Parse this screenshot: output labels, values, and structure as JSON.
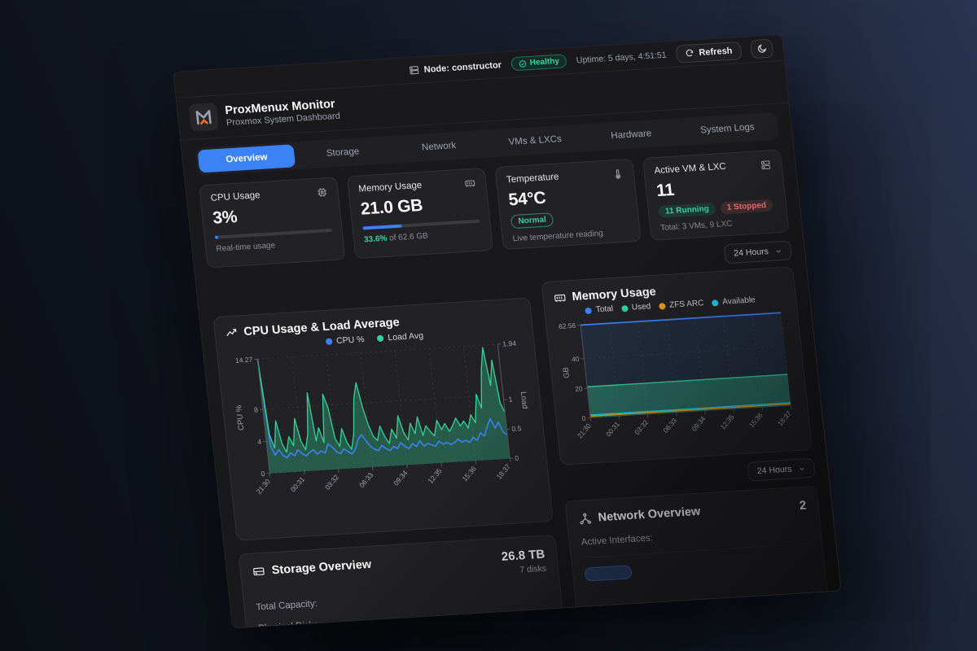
{
  "colors": {
    "accent_blue": "#3b82f6",
    "green": "#34d399",
    "red": "#f87171",
    "orange": "#f59e0b",
    "cyan": "#22d3ee",
    "dashboard_bg": "#19191c",
    "card_bg": "#222226"
  },
  "topbar": {
    "node_label": "Node: constructor",
    "health_label": "Healthy",
    "uptime": "Uptime: 5 days, 4:51:51",
    "refresh_label": "Refresh"
  },
  "header": {
    "title": "ProxMenux Monitor",
    "subtitle": "Proxmox System Dashboard"
  },
  "tabs": [
    {
      "label": "Overview",
      "active": true
    },
    {
      "label": "Storage",
      "active": false
    },
    {
      "label": "Network",
      "active": false
    },
    {
      "label": "VMs & LXCs",
      "active": false
    },
    {
      "label": "Hardware",
      "active": false
    },
    {
      "label": "System Logs",
      "active": false
    }
  ],
  "stats": {
    "cpu": {
      "title": "CPU Usage",
      "value": "3%",
      "percent": 3,
      "caption": "Real-time usage"
    },
    "memory": {
      "title": "Memory Usage",
      "value": "21.0 GB",
      "percent": 33.6,
      "caption_highlight": "33.6%",
      "caption_rest": " of 62.6 GB"
    },
    "temperature": {
      "title": "Temperature",
      "value": "54°C",
      "badge": "Normal",
      "caption": "Live temperature reading"
    },
    "vms": {
      "title": "Active VM & LXC",
      "value": "11",
      "running": "11 Running",
      "stopped": "1 Stopped",
      "caption": "Total: 3 VMs, 9 LXC"
    }
  },
  "range_selector": {
    "label": "24 Hours"
  },
  "range_selector2": {
    "label": "24 Hours"
  },
  "storage": {
    "title": "Storage Overview",
    "rows": [
      {
        "label": "Total Capacity:",
        "value": "26.8 TB"
      },
      {
        "label": "Physical Disks:",
        "value": "7 disks"
      }
    ]
  },
  "network": {
    "title": "Network Overview",
    "row_label": "Active Interfaces:",
    "count": "2"
  },
  "chart_data": [
    {
      "type": "line",
      "title": "CPU Usage & Load Average",
      "legend": [
        "CPU %",
        "Load Avg"
      ],
      "x_labels": [
        "21:30",
        "00:31",
        "03:32",
        "06:33",
        "09:34",
        "12:35",
        "15:36",
        "18:37"
      ],
      "y_left": {
        "label": "CPU %",
        "ticks": [
          0,
          4,
          8,
          14.27
        ],
        "max": 14.27
      },
      "y_right": {
        "label": "Load",
        "ticks": [
          0,
          0.5,
          1,
          1.94
        ],
        "max": 1.94
      },
      "grid": true,
      "legend_position": "top",
      "series": [
        {
          "name": "CPU %",
          "color": "#3b82f6",
          "axis": "left",
          "area": false,
          "values": [
            14.27,
            3.4,
            2.2,
            2.9,
            2.1,
            1.8,
            2.4,
            2.0,
            2.7,
            2.2,
            1.9,
            2.3,
            2.6,
            2.0,
            2.4,
            2.1,
            3.2,
            2.8,
            2.2,
            1.9,
            2.5,
            2.1,
            1.8,
            2.3,
            3.6,
            4.1,
            3.3,
            2.6,
            2.2,
            2.0,
            2.6,
            2.2,
            1.9,
            2.4,
            2.1,
            2.8,
            2.3,
            2.0,
            2.6,
            2.2,
            2.9,
            2.2,
            2.5,
            2.3,
            2.1,
            2.7,
            2.3,
            2.5,
            2.2,
            2.4,
            2.8,
            2.4,
            2.6,
            2.3,
            2.9,
            2.5,
            3.4,
            3.0,
            4.2,
            5.1,
            3.9,
            4.6,
            3.3,
            3.0
          ]
        },
        {
          "name": "Load Avg",
          "color": "#34d399",
          "axis": "right",
          "area": true,
          "values": [
            1.94,
            0.65,
            0.42,
            0.88,
            0.5,
            0.34,
            0.6,
            0.44,
            0.9,
            0.52,
            0.36,
            0.62,
            1.32,
            0.5,
            0.72,
            0.46,
            1.28,
            1.05,
            0.52,
            0.38,
            0.68,
            0.44,
            0.32,
            0.58,
            1.18,
            1.44,
            1.02,
            0.72,
            0.52,
            0.44,
            0.68,
            0.5,
            0.38,
            0.62,
            0.46,
            0.84,
            0.56,
            0.42,
            0.7,
            0.52,
            0.8,
            0.48,
            0.64,
            0.54,
            0.46,
            0.72,
            0.56,
            0.66,
            0.52,
            0.62,
            0.74,
            0.6,
            0.68,
            0.56,
            0.78,
            0.64,
            1.12,
            0.88,
            1.52,
            1.9,
            1.25,
            1.68,
            0.95,
            0.78
          ]
        }
      ]
    },
    {
      "type": "area",
      "title": "Memory Usage",
      "legend": [
        "Total",
        "Used",
        "ZFS ARC",
        "Available"
      ],
      "x_labels": [
        "21:30",
        "00:31",
        "03:32",
        "06:33",
        "09:34",
        "12:35",
        "15:36",
        "18:37"
      ],
      "y": {
        "label": "GB",
        "ticks": [
          0,
          20,
          40,
          62.56
        ],
        "max": 62.56
      },
      "grid": true,
      "legend_position": "top",
      "series": [
        {
          "name": "Total",
          "color": "#3b82f6",
          "value": 62.56,
          "fill": "rgba(59,130,246,0.12)"
        },
        {
          "name": "Used",
          "color": "#34d399",
          "value": 21.0,
          "fill": "rgba(52,211,153,0.38)"
        },
        {
          "name": "ZFS ARC",
          "color": "#f59e0b",
          "value": 1.2,
          "fill": null
        },
        {
          "name": "Available",
          "color": "#22d3ee",
          "value": 2.0,
          "fill": null
        }
      ]
    }
  ]
}
